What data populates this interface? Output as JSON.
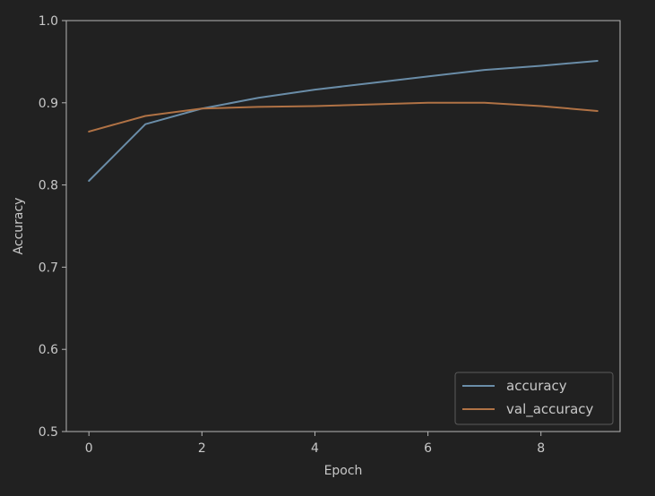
{
  "colors": {
    "background": "#212121",
    "axes_frame": "#b5b5b5",
    "text": "#c8c8c8",
    "accuracy_line": "#6a8da8",
    "val_accuracy_line": "#b07245"
  },
  "chart_data": {
    "type": "line",
    "title": "",
    "xlabel": "Epoch",
    "ylabel": "Accuracy",
    "xlim": [
      -0.4,
      9.4
    ],
    "ylim": [
      0.5,
      1.0
    ],
    "xticks": [
      0,
      2,
      4,
      6,
      8
    ],
    "yticks": [
      0.5,
      0.6,
      0.7,
      0.8,
      0.9,
      1.0
    ],
    "xtick_labels": [
      "0",
      "2",
      "4",
      "6",
      "8"
    ],
    "ytick_labels": [
      "0.5",
      "0.6",
      "0.7",
      "0.8",
      "0.9",
      "1.0"
    ],
    "grid": false,
    "legend_position": "lower-right",
    "x": [
      0,
      1,
      2,
      3,
      4,
      5,
      6,
      7,
      8,
      9
    ],
    "series": [
      {
        "name": "accuracy",
        "color": "#6a8da8",
        "values": [
          0.805,
          0.874,
          0.893,
          0.906,
          0.916,
          0.924,
          0.932,
          0.94,
          0.945,
          0.951
        ]
      },
      {
        "name": "val_accuracy",
        "color": "#b07245",
        "values": [
          0.865,
          0.884,
          0.893,
          0.895,
          0.896,
          0.898,
          0.9,
          0.9,
          0.896,
          0.89
        ]
      }
    ]
  }
}
